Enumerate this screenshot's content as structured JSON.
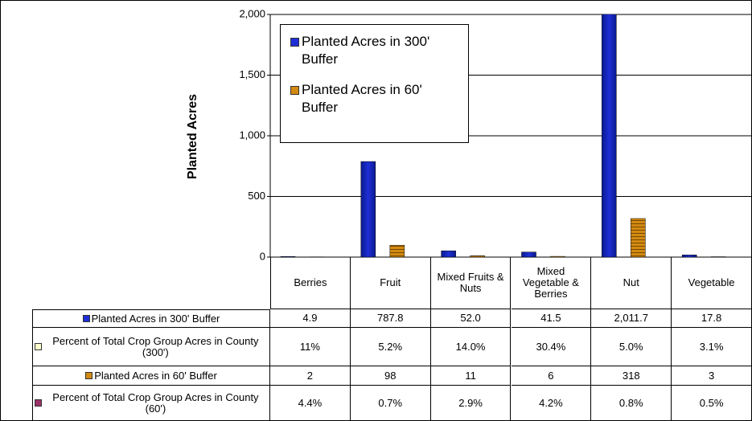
{
  "chart_data": {
    "type": "bar",
    "y_label": "Planted Acres",
    "categories": [
      "Berries",
      "Fruit",
      "Mixed Fruits & Nuts",
      "Mixed Vegetable & Berries",
      "Nut",
      "Vegetable"
    ],
    "series": [
      {
        "name": "Planted Acres in 300' Buffer",
        "color": "#1f2fd6",
        "chart": true,
        "values": [
          4.9,
          787.8,
          52.0,
          41.5,
          2011.7,
          17.8
        ],
        "value_labels": [
          "4.9",
          "787.8",
          "52.0",
          "41.5",
          "2,011.7",
          "17.8"
        ]
      },
      {
        "name": "Percent of Total Crop Group Acres in County (300')",
        "color": "#ffffcc",
        "chart": false,
        "values": [
          11,
          5.2,
          14.0,
          30.4,
          5.0,
          3.1
        ],
        "value_labels": [
          "11%",
          "5.2%",
          "14.0%",
          "30.4%",
          "5.0%",
          "3.1%"
        ]
      },
      {
        "name": "Planted Acres in 60' Buffer",
        "color": "#d28a12",
        "chart": true,
        "values": [
          2,
          98,
          11,
          6,
          318,
          3
        ],
        "value_labels": [
          "2",
          "98",
          "11",
          "6",
          "318",
          "3"
        ]
      },
      {
        "name": "Percent of Total Crop Group Acres in County (60')",
        "color": "#993366",
        "chart": false,
        "values": [
          4.4,
          0.7,
          2.9,
          4.2,
          0.8,
          0.5
        ],
        "value_labels": [
          "4.4%",
          "0.7%",
          "2.9%",
          "4.2%",
          "0.8%",
          "0.5%"
        ]
      }
    ],
    "ylim": [
      0,
      2000
    ],
    "yticks": [
      0,
      500,
      {
        "value": 1000,
        "label": "1,000"
      },
      {
        "value": 1500,
        "label": "1,500"
      },
      {
        "value": 2000,
        "label": "2,000"
      }
    ],
    "grid": true
  }
}
